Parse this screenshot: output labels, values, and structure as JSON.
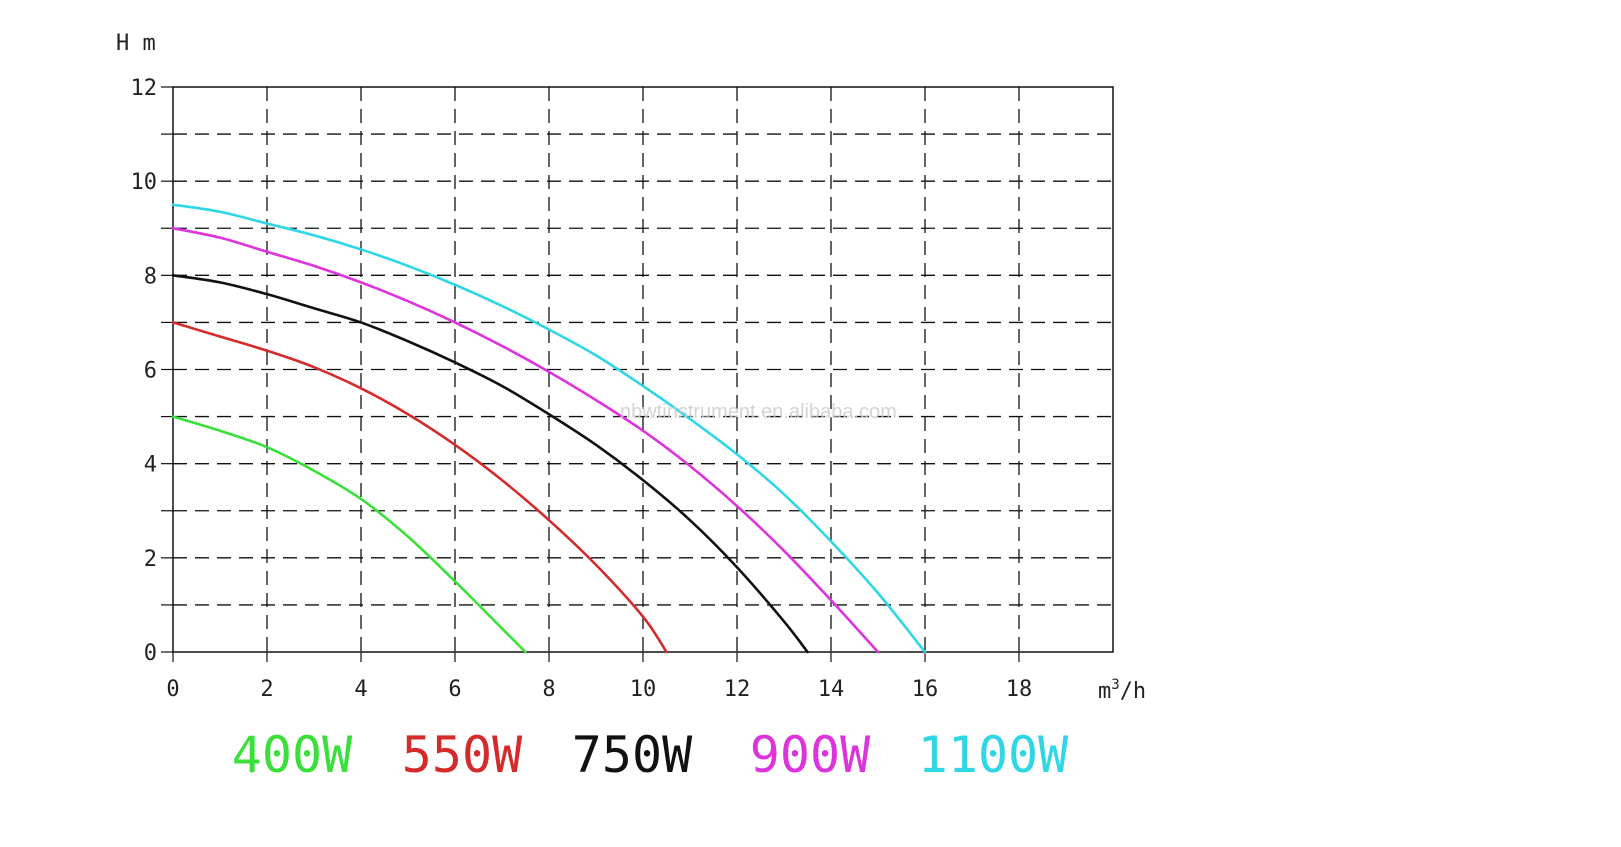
{
  "watermark": "nbwtinstrument.en.alibaba.com",
  "chart_data": {
    "type": "line",
    "ylabel": "H m",
    "xlabel_base": "m",
    "xlabel_sup": "3",
    "xlabel_tail": "/h",
    "xlim": [
      0,
      20
    ],
    "ylim": [
      0,
      12
    ],
    "x_ticks": [
      0,
      2,
      4,
      6,
      8,
      10,
      12,
      14,
      16,
      18
    ],
    "y_ticks": [
      0,
      2,
      4,
      6,
      8,
      10,
      12
    ],
    "grid": true,
    "grid_style": "dashed",
    "legend_placement": "bottom",
    "series": [
      {
        "name": "400W",
        "color": "#3adf3a",
        "x": [
          0,
          1,
          2,
          3,
          4,
          5,
          6,
          7,
          7.5
        ],
        "y": [
          5.0,
          4.7,
          4.35,
          3.85,
          3.25,
          2.45,
          1.5,
          0.5,
          0
        ]
      },
      {
        "name": "550W",
        "color": "#d42a2a",
        "x": [
          0,
          1,
          2,
          3,
          4,
          5,
          6,
          7,
          8,
          9,
          10,
          10.5
        ],
        "y": [
          7.0,
          6.7,
          6.4,
          6.05,
          5.6,
          5.05,
          4.4,
          3.65,
          2.8,
          1.85,
          0.75,
          0
        ]
      },
      {
        "name": "750W",
        "color": "#111111",
        "x": [
          0,
          1,
          2,
          3,
          4,
          5,
          6,
          7,
          8,
          9,
          10,
          11,
          12,
          13,
          13.5
        ],
        "y": [
          8.0,
          7.85,
          7.6,
          7.3,
          7.0,
          6.6,
          6.15,
          5.65,
          5.05,
          4.4,
          3.65,
          2.8,
          1.8,
          0.65,
          0
        ]
      },
      {
        "name": "900W",
        "color": "#dd33dd",
        "x": [
          0,
          1,
          2,
          3,
          4,
          5,
          6,
          7,
          8,
          9,
          10,
          11,
          12,
          13,
          14,
          15
        ],
        "y": [
          9.0,
          8.8,
          8.5,
          8.2,
          7.85,
          7.45,
          7.0,
          6.5,
          5.95,
          5.35,
          4.7,
          3.95,
          3.1,
          2.15,
          1.1,
          0
        ]
      },
      {
        "name": "1100W",
        "color": "#2ed6e6",
        "x": [
          0,
          1,
          2,
          3,
          4,
          5,
          6,
          7,
          8,
          9,
          10,
          11,
          12,
          13,
          14,
          15,
          16
        ],
        "y": [
          9.5,
          9.35,
          9.1,
          8.85,
          8.55,
          8.2,
          7.8,
          7.35,
          6.85,
          6.3,
          5.65,
          4.95,
          4.2,
          3.35,
          2.35,
          1.25,
          0
        ]
      }
    ]
  }
}
